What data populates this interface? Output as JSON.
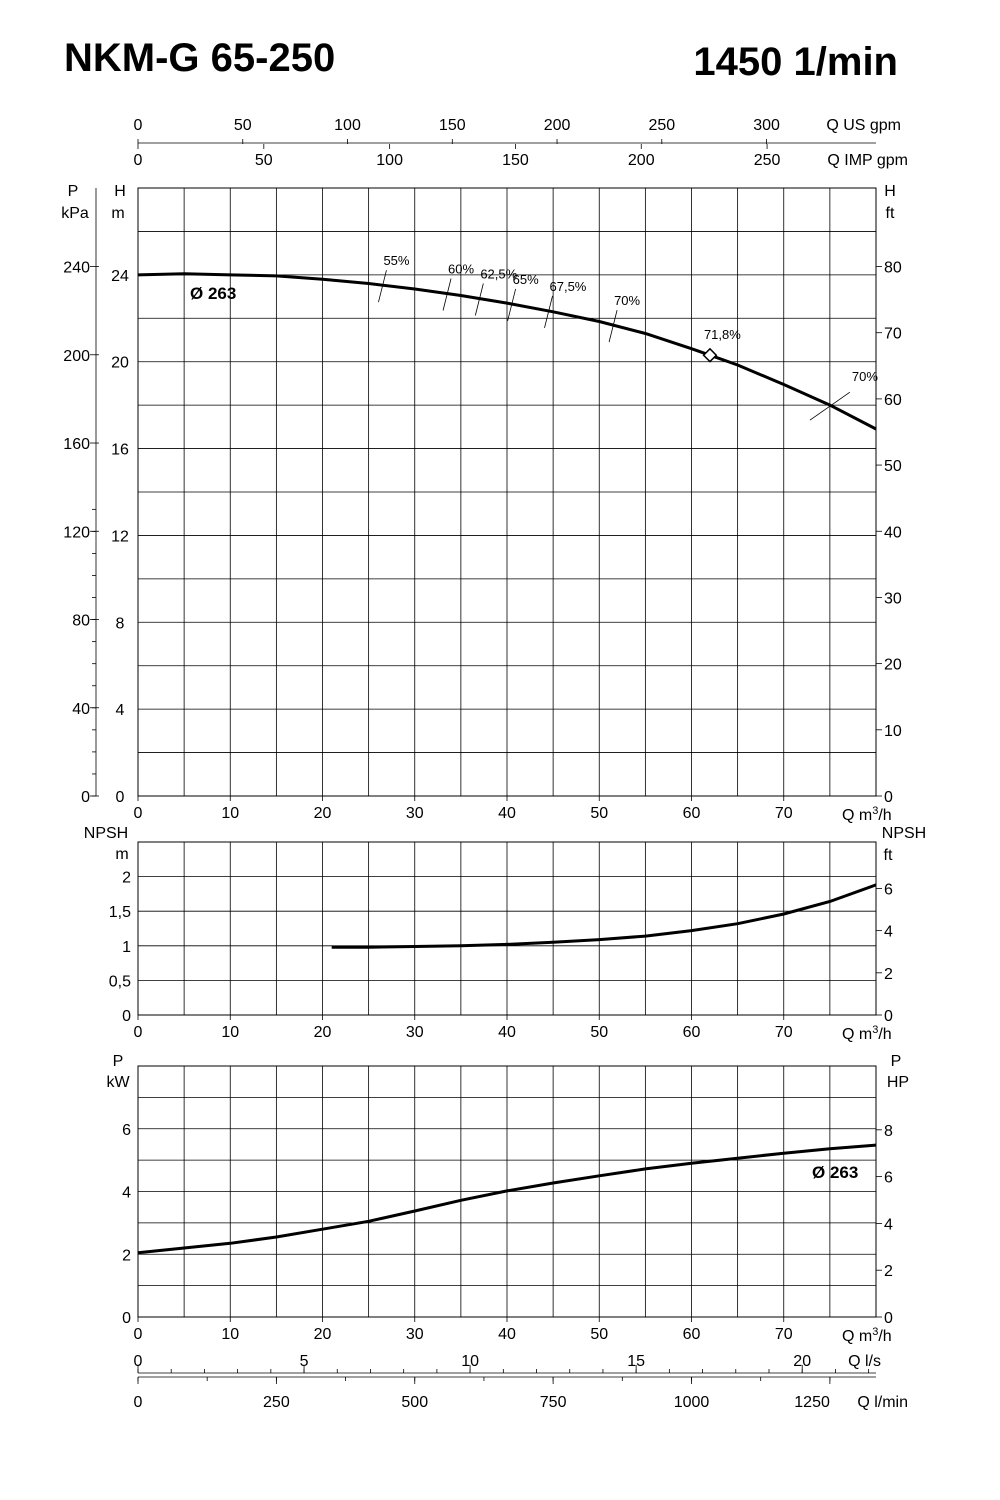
{
  "header": {
    "model": "NKM-G 65-250",
    "speed": "1450 1/min"
  },
  "chart_data": [
    {
      "type": "line",
      "name": "head",
      "x_axis": {
        "label": "Q m³/h",
        "range": [
          0,
          80
        ],
        "ticks": [
          0,
          10,
          20,
          30,
          40,
          50,
          60,
          70
        ]
      },
      "top_axes": [
        {
          "label": "Q US gpm",
          "ticks": [
            0,
            50,
            100,
            150,
            200,
            250,
            300
          ]
        },
        {
          "label": "Q IMP gpm",
          "ticks": [
            0,
            50,
            100,
            150,
            200,
            250
          ]
        }
      ],
      "left_axes": [
        {
          "label_top": "P",
          "label_unit": "kPa",
          "ticks": [
            0,
            40,
            80,
            120,
            160,
            200,
            240
          ]
        },
        {
          "label_top": "H",
          "label_unit": "m",
          "range": [
            0,
            28
          ],
          "ticks": [
            0,
            4,
            8,
            12,
            16,
            20,
            24
          ]
        }
      ],
      "right_axis": {
        "label_top": "H",
        "label_unit": "ft",
        "ticks": [
          0,
          10,
          20,
          30,
          40,
          50,
          60,
          70,
          80
        ]
      },
      "series": [
        {
          "name": "Ø 263",
          "x": [
            0,
            5,
            10,
            15,
            20,
            25,
            30,
            35,
            40,
            45,
            50,
            55,
            60,
            62,
            65,
            70,
            75,
            80
          ],
          "y": [
            24.0,
            24.05,
            24.0,
            23.95,
            23.8,
            23.6,
            23.35,
            23.05,
            22.7,
            22.3,
            21.85,
            21.3,
            20.6,
            20.3,
            19.85,
            18.95,
            18.0,
            16.9
          ]
        }
      ],
      "efficiency_labels": [
        {
          "text": "55%",
          "x": 26.5
        },
        {
          "text": "60%",
          "x": 33.5
        },
        {
          "text": "62,5%",
          "x": 37.0
        },
        {
          "text": "65%",
          "x": 40.5
        },
        {
          "text": "67,5%",
          "x": 44.5
        },
        {
          "text": "70%",
          "x": 51.5
        },
        {
          "text": "70%",
          "x": 75.0
        }
      ],
      "bep": {
        "text": "71,8%",
        "x": 62,
        "y": 20.3
      }
    },
    {
      "type": "line",
      "name": "npsh",
      "x_axis": {
        "label": "Q m³/h",
        "range": [
          0,
          80
        ],
        "ticks": [
          0,
          10,
          20,
          30,
          40,
          50,
          60,
          70
        ]
      },
      "left_axis": {
        "label_top": "NPSH",
        "label_unit": "m",
        "range": [
          0,
          2.5
        ],
        "ticks": [
          0,
          0.5,
          1,
          1.5,
          2
        ],
        "tick_labels": [
          "0",
          "0,5",
          "1",
          "1,5",
          "2"
        ]
      },
      "right_axis": {
        "label_top": "NPSH",
        "label_unit": "ft",
        "ticks": [
          0,
          2,
          4,
          6
        ]
      },
      "series": [
        {
          "x": [
            21,
            25,
            30,
            35,
            40,
            45,
            50,
            55,
            60,
            65,
            70,
            75,
            80
          ],
          "y": [
            0.98,
            0.98,
            0.99,
            1.0,
            1.02,
            1.05,
            1.09,
            1.14,
            1.22,
            1.32,
            1.46,
            1.64,
            1.88
          ]
        }
      ]
    },
    {
      "type": "line",
      "name": "power",
      "x_axis": {
        "label": "Q m³/h",
        "range": [
          0,
          80
        ],
        "ticks": [
          0,
          10,
          20,
          30,
          40,
          50,
          60,
          70
        ]
      },
      "left_axis": {
        "label_top": "P",
        "label_unit": "kW",
        "range": [
          0,
          8
        ],
        "ticks": [
          0,
          2,
          4,
          6
        ]
      },
      "right_axis": {
        "label_top": "P",
        "label_unit": "HP",
        "ticks": [
          0,
          2,
          4,
          6,
          8
        ]
      },
      "series": [
        {
          "name": "Ø 263",
          "x": [
            0,
            5,
            10,
            15,
            20,
            25,
            30,
            35,
            40,
            45,
            50,
            55,
            60,
            65,
            70,
            75,
            80
          ],
          "y": [
            2.05,
            2.2,
            2.35,
            2.55,
            2.8,
            3.05,
            3.38,
            3.72,
            4.02,
            4.27,
            4.5,
            4.72,
            4.9,
            5.06,
            5.22,
            5.36,
            5.48
          ]
        }
      ],
      "bottom_axes": [
        {
          "label": "Q l/s",
          "ticks": [
            0,
            5,
            10,
            15,
            20
          ]
        },
        {
          "label": "Q l/min",
          "ticks": [
            0,
            250,
            500,
            750,
            1000,
            1250
          ]
        }
      ]
    }
  ]
}
